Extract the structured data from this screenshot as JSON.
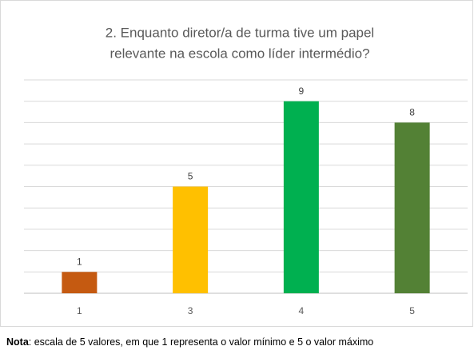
{
  "chart_data": {
    "type": "bar",
    "title": [
      "2. Enquanto  diretor/a de turma tive um papel",
      "relevante na  escola como líder  intermédio?"
    ],
    "categories": [
      "1",
      "3",
      "4",
      "5"
    ],
    "values": [
      1,
      5,
      9,
      8
    ],
    "colors": [
      "#c55a11",
      "#ffc000",
      "#00b050",
      "#538135"
    ],
    "ylim": [
      0,
      10
    ],
    "yticks": [
      0,
      1,
      2,
      3,
      4,
      5,
      6,
      7,
      8,
      9,
      10
    ],
    "ytick_labels": false,
    "grid": true,
    "data_labels": true
  },
  "note": {
    "label": "Nota",
    "text": ": escala de 5 valores, em que 1 representa o valor mínimo e 5 o valor máximo"
  }
}
